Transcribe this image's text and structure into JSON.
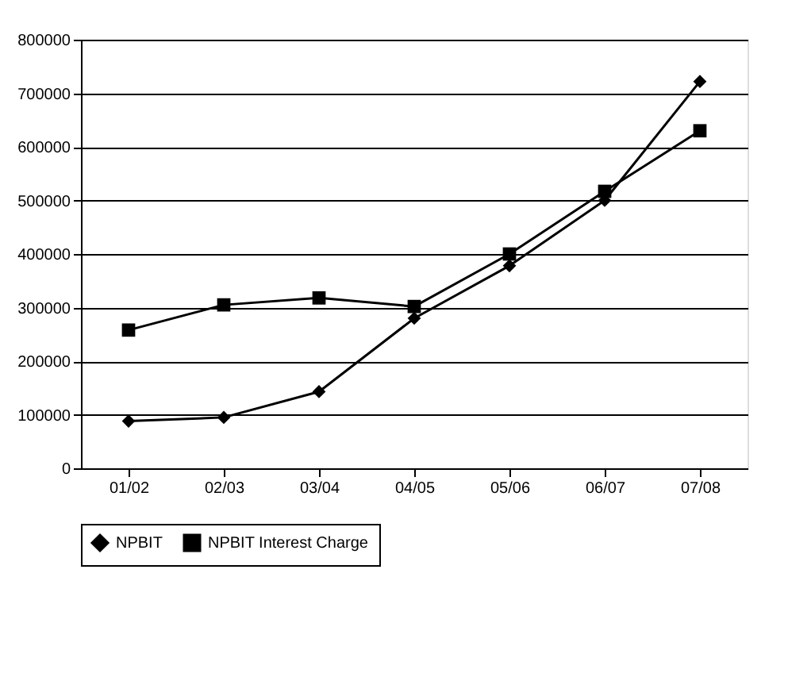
{
  "chart_data": {
    "type": "line",
    "categories": [
      "01/02",
      "02/03",
      "03/04",
      "04/05",
      "05/06",
      "06/07",
      "07/08"
    ],
    "series": [
      {
        "name": "NPBIT",
        "color": "#000000",
        "marker": "diamond",
        "values": [
          88000,
          95000,
          143000,
          280000,
          378000,
          500000,
          722000
        ]
      },
      {
        "name": "NPBIT Interest Charge",
        "color": "#000000",
        "marker": "square",
        "values": [
          258000,
          305000,
          318000,
          302000,
          400000,
          517000,
          630000
        ]
      }
    ],
    "ylim": [
      0,
      800000
    ],
    "yticks": [
      0,
      100000,
      200000,
      300000,
      400000,
      500000,
      600000,
      700000,
      800000
    ],
    "grid": "y",
    "legend": "bottom",
    "line_style": "solid"
  }
}
